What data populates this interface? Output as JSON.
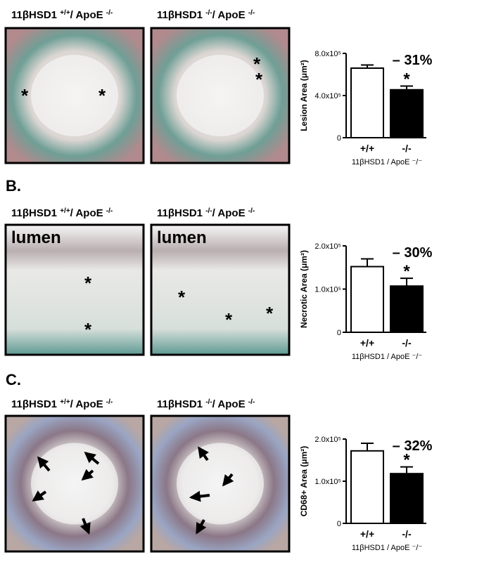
{
  "panels": [
    {
      "images": [
        {
          "title": {
            "base": "11βHSD1 ",
            "sup1": "+/+",
            "mid": "/ ApoE ",
            "sup2": "-/-"
          },
          "asterisks": [
            "*",
            "*"
          ]
        },
        {
          "title": {
            "base": "11βHSD1 ",
            "sup1": "-/-",
            "mid": "/ ApoE ",
            "sup2": "-/-"
          },
          "asterisks": [
            "*",
            "*"
          ]
        }
      ]
    },
    {
      "label": "B.",
      "images": [
        {
          "title": {
            "base": "11βHSD1 ",
            "sup1": "+/+",
            "mid": "/ ApoE ",
            "sup2": "-/-"
          },
          "lumen": "lumen",
          "asterisks": [
            "*",
            "*"
          ]
        },
        {
          "title": {
            "base": "11βHSD1 ",
            "sup1": "-/-",
            "mid": "/ ApoE ",
            "sup2": "-/-"
          },
          "lumen": "lumen",
          "asterisks": [
            "*",
            "*",
            "*"
          ]
        }
      ]
    },
    {
      "label": "C.",
      "images": [
        {
          "title": {
            "base": "11βHSD1 ",
            "sup1": "+/+",
            "mid": "/ ApoE ",
            "sup2": "-/-"
          }
        },
        {
          "title": {
            "base": "11βHSD1 ",
            "sup1": "-/-",
            "mid": "/ ApoE ",
            "sup2": "-/-"
          }
        }
      ]
    }
  ],
  "chart_data": [
    {
      "type": "bar",
      "ylabel": "Lesion Area (μm²)",
      "xlabel": "11βHSD1 / ApoE ⁻/⁻",
      "categories": [
        "+/+",
        "-/-"
      ],
      "values": [
        660000,
        455000
      ],
      "errors": [
        30000,
        35000
      ],
      "colors": [
        "#ffffff",
        "#000000"
      ],
      "ylim": [
        0,
        800000
      ],
      "yticks": [
        0,
        {
          "value": 400000,
          "label": "4.0x10⁵"
        },
        {
          "value": 800000,
          "label": "8.0x10⁵"
        }
      ],
      "annotation": "– 31%",
      "significance": "*"
    },
    {
      "type": "bar",
      "ylabel": "Necrotic Area (μm²)",
      "xlabel": "11βHSD1 / ApoE ⁻/⁻",
      "categories": [
        "+/+",
        "-/-"
      ],
      "values": [
        152000,
        107000
      ],
      "errors": [
        18000,
        18000
      ],
      "colors": [
        "#ffffff",
        "#000000"
      ],
      "ylim": [
        0,
        200000
      ],
      "yticks": [
        0,
        {
          "value": 100000,
          "label": "1.0x10⁵"
        },
        {
          "value": 200000,
          "label": "2.0x10⁵"
        }
      ],
      "annotation": "– 30%",
      "significance": "*"
    },
    {
      "type": "bar",
      "ylabel": "CD68+ Area (μm²)",
      "xlabel": "11βHSD1 / ApoE ⁻/⁻",
      "categories": [
        "+/+",
        "-/-"
      ],
      "values": [
        172000,
        118000
      ],
      "errors": [
        18000,
        16000
      ],
      "colors": [
        "#ffffff",
        "#000000"
      ],
      "ylim": [
        0,
        200000
      ],
      "yticks": [
        0,
        {
          "value": 100000,
          "label": "1.0x10⁵"
        },
        {
          "value": 200000,
          "label": "2.0x10⁵"
        }
      ],
      "annotation": "– 32%",
      "significance": "*"
    }
  ]
}
